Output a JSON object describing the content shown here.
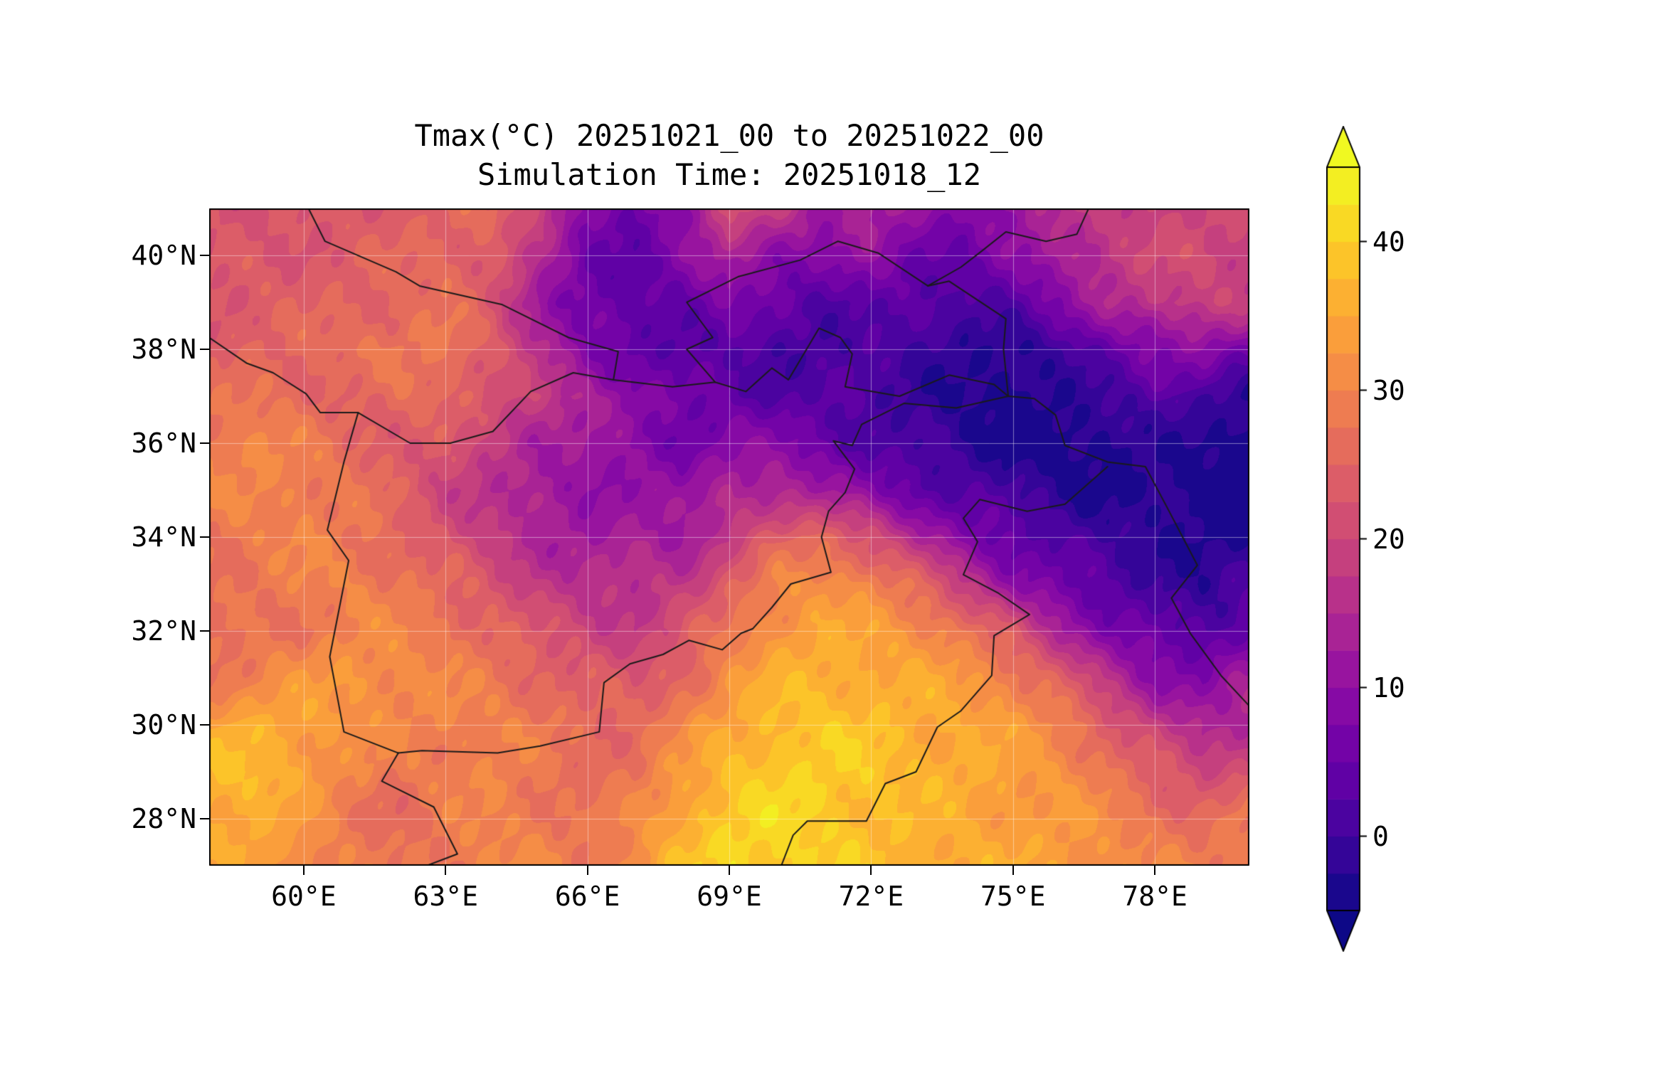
{
  "figure": {
    "background": "#ffffff",
    "title_line1": "Tmax(°C) 20251021_00 to 20251022_00",
    "title_line2": "Simulation Time: 20251018_12"
  },
  "axes": {
    "x_tick_values": [
      60,
      63,
      66,
      69,
      72,
      75,
      78
    ],
    "x_tick_labels": [
      "60°E",
      "63°E",
      "66°E",
      "69°E",
      "72°E",
      "75°E",
      "78°E"
    ],
    "y_tick_values": [
      28,
      30,
      32,
      34,
      36,
      38,
      40
    ],
    "y_tick_labels": [
      "28°N",
      "30°N",
      "32°N",
      "34°N",
      "36°N",
      "38°N",
      "40°N"
    ],
    "lon_min": 58,
    "lon_max": 80,
    "lat_min": 27,
    "lat_max": 41,
    "gridline_color": "rgba(255,255,255,0.45)",
    "country_border_color": "#1a1a1a"
  },
  "colorbar": {
    "tick_values": [
      0,
      10,
      20,
      30,
      40
    ],
    "tick_labels": [
      "0",
      "10",
      "20",
      "30",
      "40"
    ],
    "vmin": -5,
    "vmax": 45,
    "band_step": 2.5,
    "extend": "both",
    "colormap": "plasma"
  },
  "chart_data": {
    "type": "heatmap",
    "title": "Tmax(°C) 20251021_00 to 20251022_00",
    "subtitle": "Simulation Time: 20251018_12",
    "units": "°C",
    "x_name": "longitude_deg_east",
    "y_name": "latitude_deg_north",
    "legend_position": "right",
    "value_range": [
      -5,
      45
    ],
    "lons": [
      58,
      59,
      60,
      61,
      62,
      63,
      64,
      65,
      66,
      67,
      68,
      69,
      70,
      71,
      72,
      73,
      74,
      75,
      76,
      77,
      78,
      79,
      80
    ],
    "lats": [
      41,
      40,
      39,
      38,
      37,
      36,
      35,
      34,
      33,
      32,
      31,
      30,
      29,
      28,
      27
    ],
    "values": [
      [
        22,
        22,
        23,
        23,
        24,
        25,
        26,
        20,
        8,
        5,
        10,
        22,
        18,
        12,
        15,
        10,
        8,
        12,
        16,
        18,
        20,
        20,
        20
      ],
      [
        22,
        23,
        23,
        24,
        25,
        26,
        24,
        14,
        6,
        4,
        8,
        14,
        10,
        8,
        10,
        6,
        5,
        8,
        14,
        18,
        20,
        21,
        20
      ],
      [
        23,
        24,
        24,
        25,
        26,
        27,
        22,
        12,
        5,
        3,
        5,
        8,
        4,
        2,
        4,
        2,
        1,
        3,
        8,
        14,
        18,
        19,
        18
      ],
      [
        24,
        25,
        26,
        27,
        28,
        28,
        24,
        16,
        8,
        4,
        2,
        3,
        1,
        0,
        2,
        0,
        -2,
        -3,
        0,
        4,
        8,
        10,
        6
      ],
      [
        26,
        28,
        26,
        24,
        26,
        27,
        22,
        18,
        14,
        10,
        6,
        4,
        2,
        3,
        1,
        -1,
        -3,
        -4,
        -2,
        0,
        2,
        1,
        -2
      ],
      [
        30,
        31,
        28,
        26,
        24,
        22,
        18,
        14,
        12,
        8,
        6,
        10,
        8,
        5,
        2,
        0,
        -2,
        -4,
        -5,
        -3,
        -1,
        -3,
        -5
      ],
      [
        29,
        30,
        30,
        28,
        24,
        20,
        16,
        12,
        10,
        12,
        10,
        14,
        16,
        12,
        8,
        4,
        2,
        0,
        -2,
        -4,
        -3,
        -4,
        -5
      ],
      [
        28,
        29,
        30,
        28,
        26,
        22,
        18,
        14,
        12,
        14,
        12,
        18,
        24,
        26,
        22,
        14,
        8,
        4,
        2,
        0,
        -2,
        -3,
        -4
      ],
      [
        27,
        28,
        29,
        30,
        28,
        26,
        22,
        18,
        16,
        16,
        18,
        24,
        30,
        32,
        30,
        26,
        18,
        10,
        6,
        2,
        0,
        -2,
        2
      ],
      [
        26,
        27,
        28,
        30,
        30,
        28,
        26,
        22,
        20,
        18,
        22,
        28,
        33,
        35,
        34,
        32,
        28,
        22,
        14,
        8,
        4,
        2,
        6
      ],
      [
        28,
        30,
        32,
        33,
        32,
        30,
        28,
        26,
        24,
        22,
        26,
        32,
        36,
        37,
        36,
        35,
        33,
        30,
        24,
        16,
        10,
        8,
        12
      ],
      [
        34,
        36,
        35,
        32,
        30,
        30,
        30,
        28,
        26,
        26,
        30,
        35,
        38,
        39,
        38,
        36,
        35,
        33,
        30,
        24,
        18,
        14,
        16
      ],
      [
        38,
        38,
        34,
        30,
        28,
        29,
        30,
        28,
        26,
        28,
        33,
        38,
        40,
        40,
        39,
        37,
        36,
        34,
        32,
        28,
        24,
        20,
        22
      ],
      [
        36,
        36,
        32,
        28,
        26,
        28,
        30,
        29,
        27,
        30,
        36,
        40,
        41,
        40,
        38,
        36,
        35,
        34,
        33,
        31,
        28,
        26,
        28
      ],
      [
        34,
        34,
        32,
        29,
        27,
        29,
        31,
        30,
        28,
        32,
        38,
        41,
        41,
        40,
        38,
        37,
        36,
        35,
        34,
        32,
        30,
        29,
        30
      ]
    ],
    "borders": [
      [
        [
          58,
          38.25
        ],
        [
          58.8,
          37.7
        ],
        [
          59.35,
          37.5
        ],
        [
          60.05,
          37.05
        ],
        [
          60.35,
          36.65
        ],
        [
          61.15,
          36.65
        ]
      ],
      [
        [
          61.15,
          36.65
        ],
        [
          60.85,
          35.6
        ],
        [
          60.5,
          34.15
        ],
        [
          60.95,
          33.5
        ],
        [
          60.55,
          31.45
        ],
        [
          60.85,
          29.85
        ],
        [
          62.0,
          29.4
        ]
      ],
      [
        [
          61.15,
          36.65
        ],
        [
          62.25,
          36.0
        ],
        [
          63.1,
          36.0
        ],
        [
          64.0,
          36.25
        ],
        [
          64.8,
          37.1
        ],
        [
          65.7,
          37.5
        ],
        [
          66.55,
          37.35
        ],
        [
          67.8,
          37.2
        ],
        [
          68.7,
          37.3
        ],
        [
          69.35,
          37.1
        ],
        [
          69.9,
          37.6
        ],
        [
          70.25,
          37.35
        ],
        [
          70.9,
          38.45
        ],
        [
          71.35,
          38.25
        ],
        [
          71.6,
          37.9
        ],
        [
          71.45,
          37.2
        ],
        [
          72.6,
          37.0
        ],
        [
          73.65,
          37.45
        ],
        [
          74.6,
          37.25
        ],
        [
          74.9,
          37.0
        ]
      ],
      [
        [
          74.9,
          37.0
        ],
        [
          73.8,
          36.75
        ],
        [
          72.7,
          36.85
        ],
        [
          71.8,
          36.4
        ],
        [
          71.6,
          35.95
        ],
        [
          71.2,
          36.05
        ],
        [
          71.65,
          35.45
        ],
        [
          71.45,
          34.95
        ],
        [
          71.1,
          34.55
        ],
        [
          70.95,
          34.0
        ],
        [
          71.15,
          33.25
        ],
        [
          70.3,
          33.0
        ],
        [
          69.9,
          32.5
        ],
        [
          69.5,
          32.05
        ],
        [
          69.25,
          31.95
        ],
        [
          68.85,
          31.6
        ],
        [
          68.15,
          31.8
        ],
        [
          67.6,
          31.5
        ],
        [
          66.9,
          31.3
        ],
        [
          66.35,
          30.9
        ],
        [
          66.25,
          29.85
        ],
        [
          65.0,
          29.55
        ],
        [
          64.1,
          29.4
        ],
        [
          62.5,
          29.45
        ],
        [
          62.0,
          29.4
        ]
      ],
      [
        [
          62.0,
          29.4
        ],
        [
          61.65,
          28.8
        ],
        [
          62.75,
          28.25
        ],
        [
          63.25,
          27.25
        ],
        [
          62.6,
          27.0
        ]
      ],
      [
        [
          74.9,
          37.0
        ],
        [
          75.45,
          36.95
        ],
        [
          75.9,
          36.6
        ],
        [
          76.1,
          35.95
        ],
        [
          77.0,
          35.6
        ],
        [
          77.8,
          35.5
        ],
        [
          78.25,
          34.65
        ],
        [
          78.9,
          33.4
        ],
        [
          78.35,
          32.7
        ],
        [
          78.75,
          31.95
        ],
        [
          79.4,
          31.05
        ],
        [
          80,
          30.4
        ]
      ],
      [
        [
          77.0,
          35.5
        ],
        [
          76.1,
          34.7
        ],
        [
          75.3,
          34.55
        ],
        [
          74.3,
          34.8
        ],
        [
          73.95,
          34.4
        ],
        [
          74.25,
          33.9
        ],
        [
          73.95,
          33.2
        ],
        [
          74.7,
          32.8
        ],
        [
          75.35,
          32.35
        ],
        [
          74.6,
          31.9
        ],
        [
          74.55,
          31.05
        ],
        [
          73.9,
          30.3
        ],
        [
          73.4,
          29.95
        ],
        [
          72.95,
          29.0
        ],
        [
          72.3,
          28.75
        ],
        [
          71.9,
          27.95
        ],
        [
          70.65,
          27.95
        ],
        [
          70.35,
          27.65
        ],
        [
          70.1,
          27.0
        ]
      ],
      [
        [
          60.1,
          41.0
        ],
        [
          60.45,
          40.3
        ],
        [
          61.95,
          39.65
        ],
        [
          62.45,
          39.35
        ],
        [
          64.2,
          38.95
        ],
        [
          65.6,
          38.25
        ],
        [
          66.65,
          37.95
        ],
        [
          66.55,
          37.35
        ]
      ],
      [
        [
          68.7,
          37.3
        ],
        [
          68.1,
          38.0
        ],
        [
          68.65,
          38.25
        ],
        [
          68.1,
          39.0
        ],
        [
          69.2,
          39.55
        ]
      ],
      [
        [
          69.2,
          39.55
        ],
        [
          70.5,
          39.9
        ],
        [
          71.3,
          40.3
        ],
        [
          72.15,
          40.05
        ],
        [
          73.2,
          39.35
        ]
      ],
      [
        [
          73.2,
          39.35
        ],
        [
          73.9,
          39.75
        ],
        [
          74.35,
          40.1
        ],
        [
          74.85,
          40.5
        ],
        [
          75.7,
          40.3
        ],
        [
          76.35,
          40.45
        ],
        [
          76.6,
          41.0
        ]
      ],
      [
        [
          73.2,
          39.35
        ],
        [
          73.65,
          39.45
        ],
        [
          74.85,
          38.65
        ],
        [
          74.8,
          38.0
        ],
        [
          74.9,
          37.0
        ]
      ]
    ]
  }
}
